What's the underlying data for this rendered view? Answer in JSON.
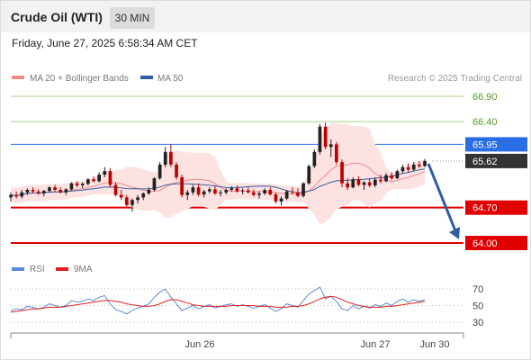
{
  "header": {
    "title": "Crude Oil (WTI)",
    "timeframe": "30 MIN",
    "datetime": "Friday, June 27, 2025 6:58:34 AM CET"
  },
  "legend": {
    "items": [
      {
        "label": "MA 20 + Bollinger Bands",
        "color": "#f08a8a"
      },
      {
        "label": "MA 50",
        "color": "#2f5ea0"
      }
    ],
    "credit": "Research © 2025 Trading Central"
  },
  "rsi_legend": {
    "items": [
      {
        "label": "RSI",
        "color": "#5b8bd6"
      },
      {
        "label": "9MA",
        "color": "#e02020"
      }
    ]
  },
  "levels": [
    {
      "value": 66.9,
      "label": "66.90",
      "style": "green-text"
    },
    {
      "value": 66.4,
      "label": "66.40",
      "style": "green-text"
    },
    {
      "value": 65.95,
      "label": "65.95",
      "style": "tag",
      "color": "#2a6ee6"
    },
    {
      "value": 65.62,
      "label": "65.62",
      "style": "tag",
      "color": "#333333"
    },
    {
      "value": 64.7,
      "label": "64.70",
      "style": "tag",
      "color": "#e00000"
    },
    {
      "value": 64.0,
      "label": "64.00",
      "style": "tag",
      "color": "#e00000"
    }
  ],
  "rsi_axis": [
    "70",
    "50",
    "30"
  ],
  "x_labels": [
    "Jun 26",
    "Jun 27",
    "Jun 30"
  ],
  "colors": {
    "up": "#222222",
    "down": "#c00000",
    "band": "#fde2e2",
    "ma20": "#f08a8a",
    "ma50": "#2f5ea0",
    "support": "#e00000",
    "resistance": "#2a6ee6",
    "target_green": "#a8d080",
    "arrow": "#2f5ea0"
  },
  "chart_data": [
    {
      "type": "candlestick",
      "title": "Crude Oil (WTI)",
      "timeframe": "30 MIN",
      "x_labels": [
        "Jun 26",
        "Jun 27",
        "Jun 30"
      ],
      "ylim": [
        64.0,
        66.9
      ],
      "last_price": 65.62,
      "resistance": [
        66.9,
        66.4,
        65.95
      ],
      "support": [
        64.7,
        64.0
      ],
      "projection": {
        "from": 65.62,
        "to": 64.0
      },
      "ohlc": [
        [
          64.9,
          65.0,
          64.82,
          64.95
        ],
        [
          64.95,
          65.02,
          64.88,
          64.92
        ],
        [
          64.92,
          65.05,
          64.88,
          65.0
        ],
        [
          65.0,
          65.08,
          64.95,
          65.05
        ],
        [
          65.05,
          65.1,
          64.98,
          65.02
        ],
        [
          65.02,
          65.06,
          64.95,
          64.98
        ],
        [
          64.98,
          65.05,
          64.92,
          65.03
        ],
        [
          65.03,
          65.12,
          65.0,
          65.1
        ],
        [
          65.1,
          65.15,
          65.02,
          65.05
        ],
        [
          65.05,
          65.1,
          64.98,
          65.0
        ],
        [
          65.0,
          65.08,
          64.95,
          65.06
        ],
        [
          65.06,
          65.2,
          65.04,
          65.18
        ],
        [
          65.18,
          65.22,
          65.1,
          65.14
        ],
        [
          65.14,
          65.2,
          65.08,
          65.17
        ],
        [
          65.17,
          65.28,
          65.14,
          65.26
        ],
        [
          65.26,
          65.32,
          65.2,
          65.22
        ],
        [
          65.22,
          65.4,
          65.2,
          65.35
        ],
        [
          65.35,
          65.5,
          65.3,
          65.42
        ],
        [
          65.42,
          65.48,
          65.1,
          65.15
        ],
        [
          65.15,
          65.2,
          64.92,
          64.95
        ],
        [
          64.95,
          65.05,
          64.85,
          64.9
        ],
        [
          64.9,
          64.95,
          64.7,
          64.75
        ],
        [
          64.75,
          64.88,
          64.62,
          64.85
        ],
        [
          64.85,
          64.95,
          64.78,
          64.9
        ],
        [
          64.9,
          65.0,
          64.85,
          64.98
        ],
        [
          64.98,
          65.1,
          64.95,
          65.05
        ],
        [
          65.05,
          65.3,
          65.02,
          65.28
        ],
        [
          65.28,
          65.6,
          65.25,
          65.55
        ],
        [
          65.55,
          65.9,
          65.5,
          65.8
        ],
        [
          65.8,
          65.95,
          65.5,
          65.55
        ],
        [
          65.55,
          65.6,
          65.25,
          65.3
        ],
        [
          65.3,
          65.35,
          64.9,
          64.95
        ],
        [
          64.95,
          65.05,
          64.85,
          65.0
        ],
        [
          65.0,
          65.15,
          64.95,
          65.1
        ],
        [
          65.1,
          65.18,
          64.92,
          64.96
        ],
        [
          64.96,
          65.05,
          64.9,
          65.02
        ],
        [
          65.02,
          65.1,
          64.98,
          65.06
        ],
        [
          65.06,
          65.12,
          64.95,
          64.98
        ],
        [
          64.98,
          65.05,
          64.92,
          65.0
        ],
        [
          65.0,
          65.08,
          64.96,
          65.05
        ],
        [
          65.05,
          65.12,
          65.02,
          65.08
        ],
        [
          65.08,
          65.14,
          65.0,
          65.02
        ],
        [
          65.02,
          65.08,
          64.96,
          65.04
        ],
        [
          65.04,
          65.1,
          64.98,
          65.0
        ],
        [
          65.0,
          65.06,
          64.92,
          64.95
        ],
        [
          64.95,
          65.02,
          64.88,
          64.98
        ],
        [
          64.98,
          65.08,
          64.95,
          65.05
        ],
        [
          65.05,
          65.1,
          64.94,
          64.96
        ],
        [
          64.96,
          65.0,
          64.78,
          64.82
        ],
        [
          64.82,
          64.92,
          64.74,
          64.88
        ],
        [
          64.88,
          65.05,
          64.85,
          65.02
        ],
        [
          65.02,
          65.1,
          64.96,
          65.0
        ],
        [
          65.0,
          65.08,
          64.9,
          64.93
        ],
        [
          64.93,
          65.2,
          64.9,
          65.18
        ],
        [
          65.18,
          65.55,
          65.15,
          65.52
        ],
        [
          65.52,
          65.85,
          65.48,
          65.8
        ],
        [
          65.8,
          66.35,
          65.75,
          66.3
        ],
        [
          66.3,
          66.38,
          65.85,
          65.9
        ],
        [
          65.9,
          66.05,
          65.7,
          65.95
        ],
        [
          65.95,
          66.0,
          65.55,
          65.6
        ],
        [
          65.6,
          65.65,
          65.1,
          65.18
        ],
        [
          65.18,
          65.28,
          65.05,
          65.1
        ],
        [
          65.1,
          65.3,
          65.08,
          65.26
        ],
        [
          65.26,
          65.32,
          65.12,
          65.15
        ],
        [
          65.15,
          65.22,
          65.05,
          65.2
        ],
        [
          65.2,
          65.28,
          65.1,
          65.14
        ],
        [
          65.14,
          65.3,
          65.1,
          65.25
        ],
        [
          65.25,
          65.35,
          65.18,
          65.22
        ],
        [
          65.22,
          65.38,
          65.2,
          65.34
        ],
        [
          65.34,
          65.4,
          65.24,
          65.28
        ],
        [
          65.28,
          65.45,
          65.26,
          65.42
        ],
        [
          65.42,
          65.55,
          65.38,
          65.5
        ],
        [
          65.5,
          65.58,
          65.4,
          65.45
        ],
        [
          65.45,
          65.6,
          65.42,
          65.55
        ],
        [
          65.55,
          65.62,
          65.48,
          65.52
        ],
        [
          65.52,
          65.66,
          65.5,
          65.62
        ]
      ]
    },
    {
      "type": "line",
      "title": "RSI",
      "series": [
        {
          "name": "RSI",
          "values": [
            44,
            46,
            45,
            49,
            48,
            46,
            48,
            52,
            50,
            48,
            50,
            56,
            54,
            55,
            58,
            56,
            60,
            62,
            52,
            45,
            43,
            40,
            44,
            47,
            49,
            52,
            60,
            66,
            70,
            60,
            52,
            44,
            47,
            50,
            46,
            49,
            51,
            47,
            49,
            51,
            52,
            49,
            51,
            49,
            47,
            49,
            51,
            47,
            43,
            46,
            52,
            50,
            48,
            56,
            64,
            68,
            72,
            58,
            61,
            55,
            46,
            44,
            50,
            46,
            49,
            47,
            51,
            49,
            53,
            50,
            55,
            58,
            54,
            57,
            55,
            57
          ]
        },
        {
          "name": "9MA",
          "values": [
            42,
            43,
            44,
            45,
            46,
            46,
            47,
            48,
            48,
            48,
            49,
            50,
            51,
            52,
            53,
            54,
            55,
            56,
            56,
            55,
            54,
            52,
            51,
            50,
            49,
            49,
            50,
            52,
            55,
            57,
            57,
            55,
            53,
            51,
            50,
            49,
            49,
            49,
            49,
            49,
            50,
            50,
            50,
            50,
            50,
            49,
            49,
            49,
            48,
            48,
            48,
            49,
            49,
            50,
            52,
            55,
            58,
            60,
            61,
            60,
            57,
            54,
            52,
            50,
            49,
            48,
            48,
            48,
            49,
            49,
            50,
            51,
            52,
            53,
            54,
            55
          ]
        }
      ],
      "ylim": [
        30,
        70
      ],
      "y_ticks": [
        70,
        50,
        30
      ]
    }
  ]
}
